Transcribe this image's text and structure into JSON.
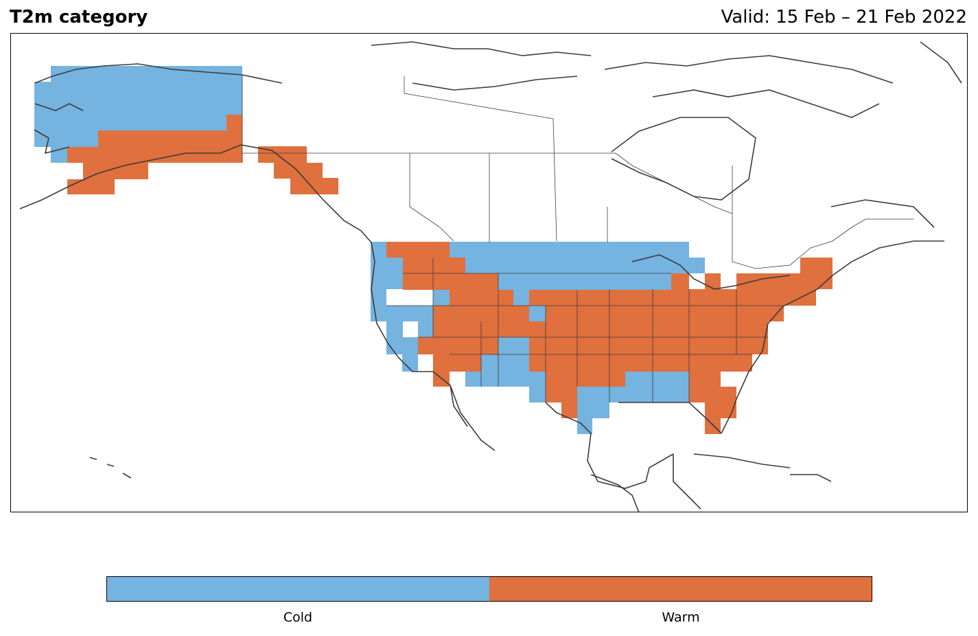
{
  "title": "T2m category",
  "valid": "Valid: 15 Feb – 21 Feb 2022",
  "categories": [
    {
      "name": "Cold",
      "color": "#75b3e0"
    },
    {
      "name": "Warm",
      "color": "#e0703d"
    }
  ]
}
